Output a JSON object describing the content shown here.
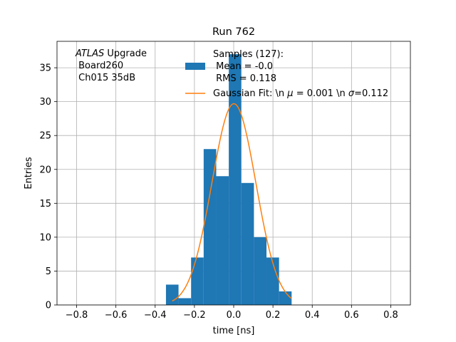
{
  "chart_data": {
    "type": "bar",
    "title": "Run 762",
    "xlabel": "time [ns]",
    "ylabel": "Entries",
    "xlim": [
      -0.9,
      0.9
    ],
    "ylim": [
      0,
      38.9
    ],
    "grid": true,
    "x_ticks": [
      -0.8,
      -0.6,
      -0.4,
      -0.2,
      0.0,
      0.2,
      0.4,
      0.6,
      0.8
    ],
    "x_tick_labels": [
      "−0.8",
      "−0.6",
      "−0.4",
      "−0.2",
      "0.0",
      "0.2",
      "0.4",
      "0.6",
      "0.8"
    ],
    "y_ticks": [
      0,
      5,
      10,
      15,
      20,
      25,
      30,
      35
    ],
    "y_tick_labels": [
      "0",
      "5",
      "10",
      "15",
      "20",
      "25",
      "30",
      "35"
    ],
    "histogram": {
      "name": "Samples (127):",
      "color": "#1f77b4",
      "bin_edges": [
        -0.345,
        -0.281,
        -0.217,
        -0.153,
        -0.089,
        -0.025,
        0.039,
        0.103,
        0.167,
        0.231,
        0.295
      ],
      "counts": [
        3,
        1,
        7,
        23,
        19,
        37,
        18,
        10,
        7,
        2
      ]
    },
    "fit": {
      "name": "Gaussian Fit: \\n μ = 0.001 \\n σ=0.112",
      "color": "#ff7f0e",
      "amplitude": 29.7,
      "mu": 0.001,
      "sigma": 0.112,
      "x_range": [
        -0.313,
        0.295
      ]
    },
    "legend": {
      "placement": "top-right",
      "hist_lines": [
        "Samples (127):",
        " Mean = -0.0",
        " RMS = 0.118"
      ],
      "fit_label_prefix": "Gaussian Fit: \\n ",
      "fit_mu_symbol": "μ",
      "fit_mu_text": " = 0.001 \\n ",
      "fit_sigma_symbol": "σ",
      "fit_sigma_text": "=0.112"
    },
    "annotation": {
      "placement": "top-left",
      "line1_italic": "ATLAS",
      "line1_rest": " Upgrade",
      "line2": " Board260",
      "line3": " Ch015 35dB"
    }
  }
}
